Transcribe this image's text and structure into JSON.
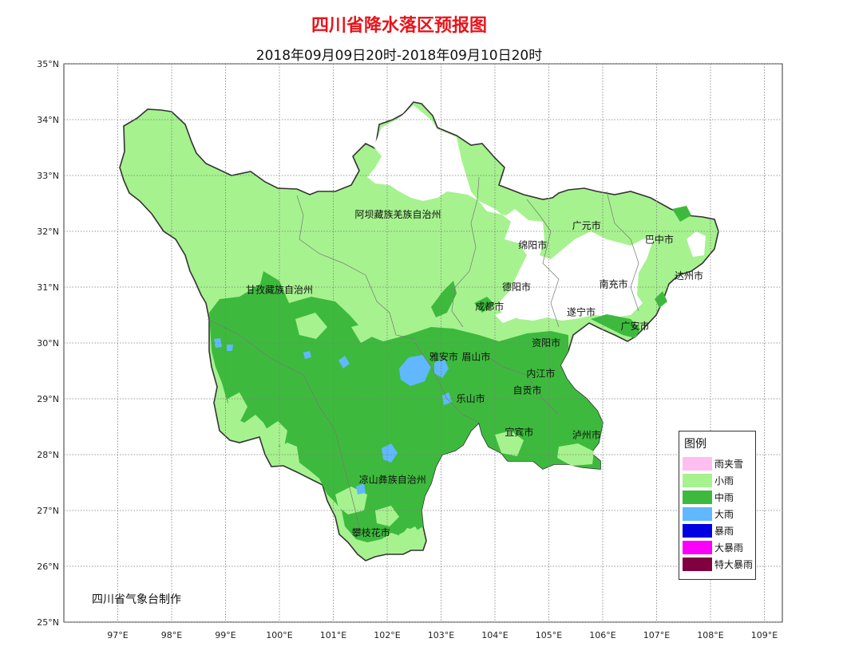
{
  "title": "四川省降水落区预报图",
  "subtitle": "2018年09月09日20时-2018年09月10日20时",
  "credit": "四川省气象台制作",
  "lat_labels": [
    "35°N",
    "34°N",
    "33°N",
    "32°N",
    "31°N",
    "30°N",
    "29°N",
    "28°N",
    "27°N",
    "26°N",
    "25°N"
  ],
  "lon_labels": [
    "97°E",
    "98°E",
    "99°E",
    "100°E",
    "101°E",
    "102°E",
    "103°E",
    "104°E",
    "105°E",
    "106°E",
    "107°E",
    "108°E",
    "109°E"
  ],
  "cities": [
    {
      "name": "阿坝藏族羌族自治州",
      "lon": 102.2,
      "lat": 32.3
    },
    {
      "name": "甘孜藏族自治州",
      "lon": 100.0,
      "lat": 30.95
    },
    {
      "name": "广元市",
      "lon": 105.7,
      "lat": 32.1
    },
    {
      "name": "巴中市",
      "lon": 107.05,
      "lat": 31.85
    },
    {
      "name": "绵阳市",
      "lon": 104.7,
      "lat": 31.75
    },
    {
      "name": "德阳市",
      "lon": 104.4,
      "lat": 31.0
    },
    {
      "name": "南充市",
      "lon": 106.2,
      "lat": 31.05
    },
    {
      "name": "达州市",
      "lon": 107.6,
      "lat": 31.2
    },
    {
      "name": "成都市",
      "lon": 103.9,
      "lat": 30.65
    },
    {
      "name": "遂宁市",
      "lon": 105.6,
      "lat": 30.55
    },
    {
      "name": "广安市",
      "lon": 106.6,
      "lat": 30.3
    },
    {
      "name": "资阳市",
      "lon": 104.95,
      "lat": 30.0
    },
    {
      "name": "雅安市",
      "lon": 103.05,
      "lat": 29.75
    },
    {
      "name": "眉山市",
      "lon": 103.65,
      "lat": 29.75
    },
    {
      "name": "内江市",
      "lon": 104.85,
      "lat": 29.45
    },
    {
      "name": "自贡市",
      "lon": 104.6,
      "lat": 29.15
    },
    {
      "name": "乐山市",
      "lon": 103.55,
      "lat": 29.0
    },
    {
      "name": "宜宾市",
      "lon": 104.45,
      "lat": 28.4
    },
    {
      "name": "泸州市",
      "lon": 105.7,
      "lat": 28.35
    },
    {
      "name": "凉山彝族自治州",
      "lon": 102.1,
      "lat": 27.55
    },
    {
      "name": "攀枝花市",
      "lon": 101.7,
      "lat": 26.6
    }
  ],
  "legend": {
    "title": "图例",
    "items": [
      {
        "label": "雨夹雪",
        "color": "#ffbef0"
      },
      {
        "label": "小雨",
        "color": "#a6f28f"
      },
      {
        "label": "中雨",
        "color": "#3dba3d"
      },
      {
        "label": "大雨",
        "color": "#61b8ff"
      },
      {
        "label": "暴雨",
        "color": "#0000e1"
      },
      {
        "label": "大暴雨",
        "color": "#fa00fa"
      },
      {
        "label": "特大暴雨",
        "color": "#800040"
      }
    ]
  }
}
